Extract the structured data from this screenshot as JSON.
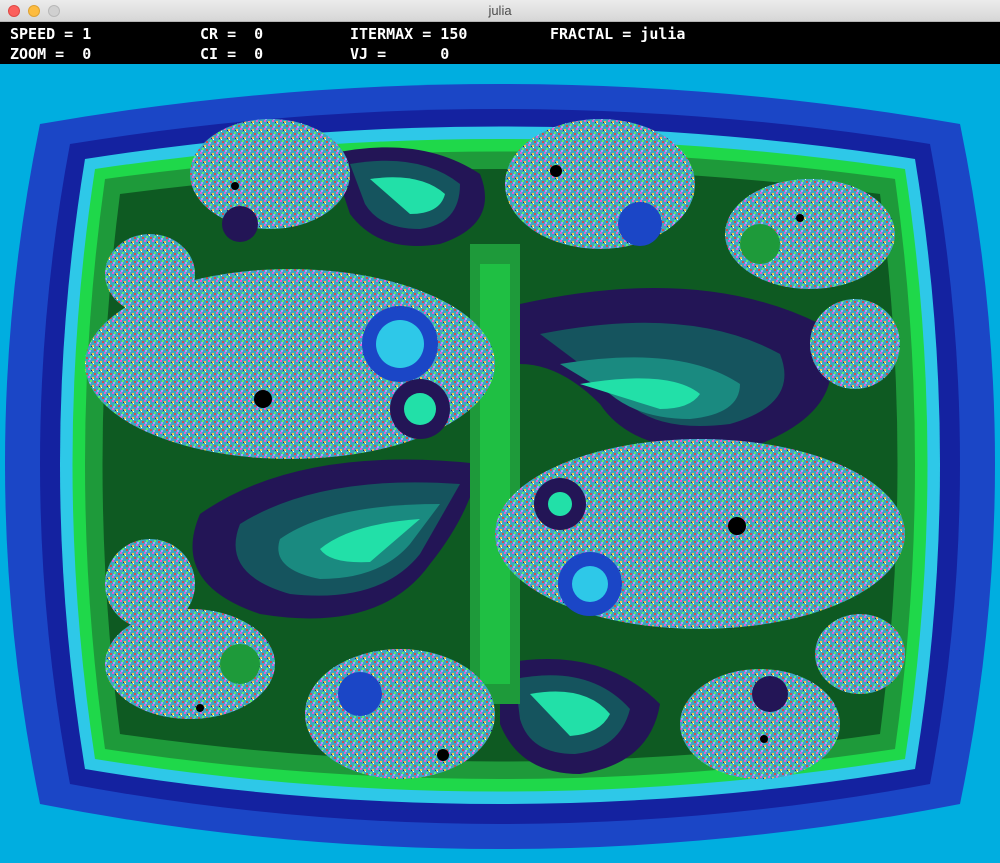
{
  "window": {
    "title": "julia",
    "controls": {
      "close": "close-icon",
      "minimize": "minimize-icon",
      "zoom": "zoom-icon"
    }
  },
  "hud": {
    "speed": "SPEED = 1",
    "zoom": "ZOOM =  0",
    "cr": "CR =  0",
    "ci": "CI =  0",
    "itermax": "ITERMAX = 150",
    "vj": "VJ =      0",
    "fractal": "FRACTAL = julia"
  },
  "fractal_view": {
    "type": "julia",
    "colors": {
      "outer_sky": "#00aee0",
      "royal_blue": "#1b46c6",
      "dark_blue": "#1422a0",
      "bright_green": "#1fd84a",
      "mid_green": "#1e9a3a",
      "deep_green": "#0e5a22",
      "mint": "#22e0a8",
      "teal": "#1a8a80",
      "dark_teal": "#15545e",
      "indigo": "#231556",
      "cyan": "#2ec8e8",
      "olive_dark": "#1c2a10"
    }
  }
}
